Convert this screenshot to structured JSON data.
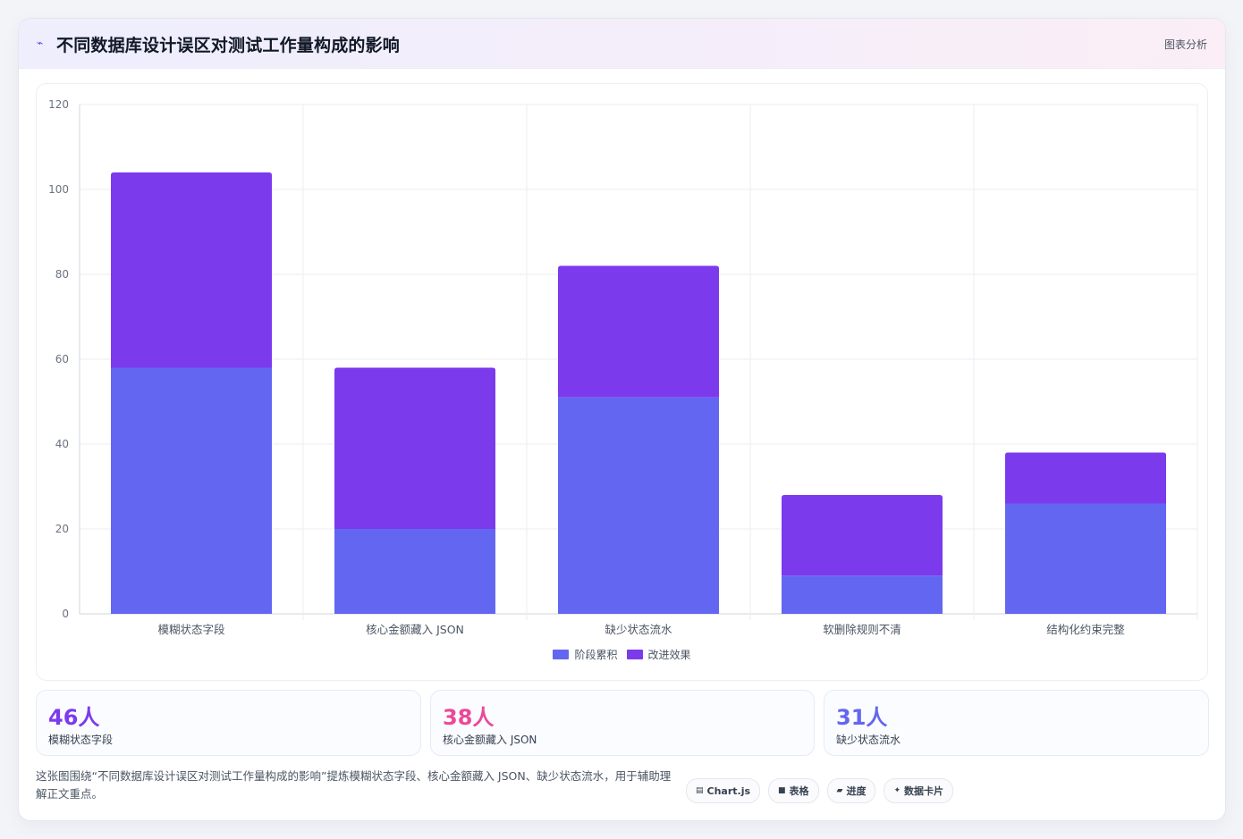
{
  "header": {
    "title": "不同数据库设计误区对测试工作量构成的影响",
    "tag": "图表分析"
  },
  "chart_data": {
    "type": "bar",
    "stacked": true,
    "title": "",
    "xlabel": "",
    "ylabel": "",
    "ylim": [
      0,
      120
    ],
    "yticks": [
      0,
      20,
      40,
      60,
      80,
      100,
      120
    ],
    "grid": true,
    "legend_position": "bottom",
    "categories": [
      "模糊状态字段",
      "核心金额藏入 JSON",
      "缺少状态流水",
      "软删除规则不清",
      "结构化约束完整"
    ],
    "series": [
      {
        "name": "阶段累积",
        "color": "#6366f1",
        "values": [
          58,
          20,
          51,
          9,
          26
        ]
      },
      {
        "name": "改进效果",
        "color": "#7c3aed",
        "values": [
          46,
          38,
          31,
          19,
          12
        ]
      }
    ]
  },
  "stats": [
    {
      "value": "46人",
      "label": "模糊状态字段",
      "color": "#7c3aed"
    },
    {
      "value": "38人",
      "label": "核心金额藏入 JSON",
      "color": "#ec4899"
    },
    {
      "value": "31人",
      "label": "缺少状态流水",
      "color": "#6366f1"
    }
  ],
  "footer": {
    "note": "这张图围绕“不同数据库设计误区对测试工作量构成的影响”提炼模糊状态字段、核心金额藏入 JSON、缺少状态流水，用于辅助理解正文重点。"
  },
  "chips": [
    {
      "icon": "chart-icon",
      "glyph": "▤",
      "label": "Chart.js"
    },
    {
      "icon": "table-icon",
      "glyph": "■",
      "label": "表格"
    },
    {
      "icon": "progress-icon",
      "glyph": "▰",
      "label": "进度"
    },
    {
      "icon": "sparkle-icon",
      "glyph": "✦",
      "label": "数据卡片"
    }
  ]
}
